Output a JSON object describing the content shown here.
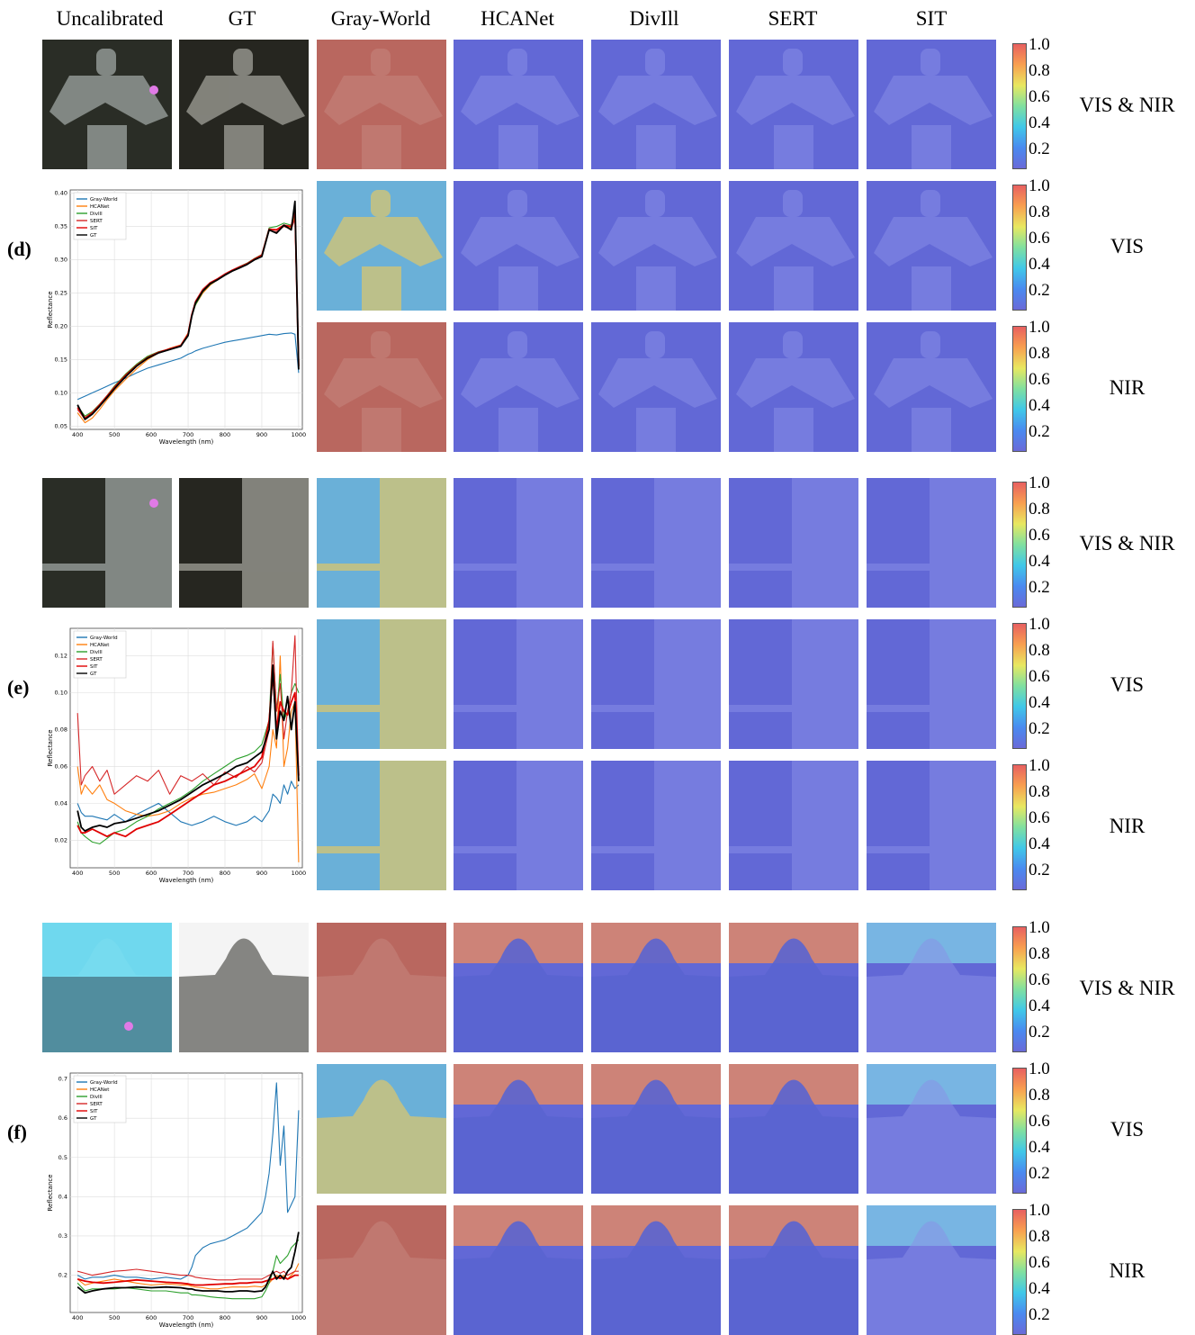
{
  "columns": [
    "Uncalibrated",
    "GT",
    "Gray-World",
    "HCANet",
    "DivIll",
    "SERT",
    "SIT"
  ],
  "groups": [
    {
      "label": "(d)",
      "rows": [
        "VIS & NIR",
        "VIS",
        "NIR"
      ],
      "scene": "lantern",
      "chart_data": {
        "type": "line",
        "xlabel": "Wavelength (nm)",
        "ylabel": "Reflectance",
        "xlim": [
          380,
          1010
        ],
        "ylim": [
          0.045,
          0.405
        ],
        "xticks": [
          400,
          500,
          600,
          700,
          800,
          900,
          1000
        ],
        "yticks": [
          0.05,
          0.1,
          0.15,
          0.2,
          0.25,
          0.3,
          0.35,
          0.4
        ],
        "ytick_labels": [
          "0.05",
          "0.10",
          "0.15",
          "0.20",
          "0.25",
          "0.30",
          "0.35",
          "0.40"
        ],
        "legend": "top-left",
        "x": [
          400,
          420,
          440,
          460,
          480,
          500,
          530,
          560,
          590,
          620,
          650,
          680,
          700,
          710,
          720,
          740,
          760,
          780,
          800,
          820,
          840,
          860,
          880,
          900,
          920,
          940,
          960,
          980,
          990,
          1000
        ],
        "series": [
          {
            "name": "Gray-World",
            "color": "#1f77b4",
            "values": [
              0.09,
              0.095,
              0.1,
              0.105,
              0.11,
              0.115,
              0.122,
              0.13,
              0.137,
              0.142,
              0.147,
              0.152,
              0.158,
              0.16,
              0.163,
              0.167,
              0.17,
              0.173,
              0.176,
              0.178,
              0.18,
              0.182,
              0.184,
              0.186,
              0.188,
              0.187,
              0.189,
              0.19,
              0.188,
              0.13
            ]
          },
          {
            "name": "HCANet",
            "color": "#ff7f0e",
            "values": [
              0.07,
              0.055,
              0.062,
              0.075,
              0.09,
              0.103,
              0.12,
              0.136,
              0.15,
              0.16,
              0.167,
              0.172,
              0.19,
              0.218,
              0.232,
              0.25,
              0.262,
              0.27,
              0.277,
              0.283,
              0.288,
              0.293,
              0.3,
              0.305,
              0.345,
              0.34,
              0.352,
              0.348,
              0.365,
              0.135
            ]
          },
          {
            "name": "DivIll",
            "color": "#2ca02c",
            "values": [
              0.08,
              0.065,
              0.072,
              0.083,
              0.096,
              0.11,
              0.128,
              0.143,
              0.155,
              0.162,
              0.166,
              0.17,
              0.185,
              0.215,
              0.232,
              0.252,
              0.263,
              0.27,
              0.278,
              0.284,
              0.29,
              0.295,
              0.302,
              0.308,
              0.348,
              0.35,
              0.355,
              0.352,
              0.368,
              0.14
            ]
          },
          {
            "name": "SERT",
            "color": "#d62728",
            "values": [
              0.075,
              0.06,
              0.068,
              0.08,
              0.093,
              0.107,
              0.125,
              0.14,
              0.152,
              0.16,
              0.165,
              0.17,
              0.188,
              0.218,
              0.238,
              0.256,
              0.266,
              0.272,
              0.279,
              0.285,
              0.29,
              0.294,
              0.3,
              0.306,
              0.344,
              0.342,
              0.35,
              0.346,
              0.362,
              0.138
            ]
          },
          {
            "name": "SIT",
            "color": "#e00000",
            "values": [
              0.078,
              0.062,
              0.07,
              0.082,
              0.095,
              0.108,
              0.126,
              0.141,
              0.153,
              0.161,
              0.166,
              0.171,
              0.188,
              0.217,
              0.236,
              0.254,
              0.265,
              0.271,
              0.278,
              0.284,
              0.289,
              0.294,
              0.301,
              0.307,
              0.346,
              0.345,
              0.352,
              0.35,
              0.375,
              0.14
            ]
          },
          {
            "name": "GT",
            "color": "#000000",
            "values": [
              0.082,
              0.06,
              0.068,
              0.08,
              0.093,
              0.106,
              0.124,
              0.14,
              0.152,
              0.16,
              0.165,
              0.17,
              0.186,
              0.215,
              0.235,
              0.253,
              0.264,
              0.27,
              0.277,
              0.283,
              0.288,
              0.293,
              0.3,
              0.305,
              0.345,
              0.34,
              0.352,
              0.345,
              0.388,
              0.135
            ]
          }
        ]
      }
    },
    {
      "label": "(e)",
      "rows": [
        "VIS & NIR",
        "VIS",
        "NIR"
      ],
      "scene": "tree",
      "chart_data": {
        "type": "line",
        "xlabel": "Wavelength (nm)",
        "ylabel": "Reflectance",
        "xlim": [
          380,
          1010
        ],
        "ylim": [
          0.005,
          0.135
        ],
        "xticks": [
          400,
          500,
          600,
          700,
          800,
          900,
          1000
        ],
        "yticks": [
          0.02,
          0.04,
          0.06,
          0.08,
          0.1,
          0.12
        ],
        "ytick_labels": [
          "0.02",
          "0.04",
          "0.06",
          "0.08",
          "0.10",
          "0.12"
        ],
        "legend": "top-left",
        "x": [
          400,
          410,
          420,
          440,
          460,
          480,
          500,
          530,
          560,
          590,
          620,
          650,
          680,
          710,
          740,
          770,
          800,
          830,
          860,
          880,
          900,
          920,
          930,
          940,
          950,
          960,
          970,
          980,
          990,
          1000
        ],
        "series": [
          {
            "name": "Gray-World",
            "color": "#1f77b4",
            "values": [
              0.04,
              0.035,
              0.033,
              0.033,
              0.032,
              0.031,
              0.034,
              0.03,
              0.034,
              0.037,
              0.04,
              0.035,
              0.03,
              0.028,
              0.03,
              0.033,
              0.03,
              0.028,
              0.03,
              0.033,
              0.03,
              0.036,
              0.045,
              0.043,
              0.04,
              0.05,
              0.045,
              0.052,
              0.048,
              0.05
            ]
          },
          {
            "name": "HCANet",
            "color": "#ff7f0e",
            "values": [
              0.06,
              0.045,
              0.05,
              0.045,
              0.05,
              0.042,
              0.04,
              0.036,
              0.034,
              0.033,
              0.034,
              0.036,
              0.04,
              0.043,
              0.045,
              0.046,
              0.048,
              0.05,
              0.053,
              0.056,
              0.048,
              0.06,
              0.08,
              0.07,
              0.12,
              0.06,
              0.07,
              0.09,
              0.095,
              0.008
            ]
          },
          {
            "name": "DivIll",
            "color": "#2ca02c",
            "values": [
              0.03,
              0.024,
              0.022,
              0.019,
              0.018,
              0.021,
              0.024,
              0.026,
              0.03,
              0.033,
              0.037,
              0.04,
              0.043,
              0.047,
              0.052,
              0.056,
              0.06,
              0.064,
              0.066,
              0.068,
              0.072,
              0.085,
              0.127,
              0.09,
              0.11,
              0.085,
              0.09,
              0.1,
              0.105,
              0.1
            ]
          },
          {
            "name": "SERT",
            "color": "#d62728",
            "values": [
              0.089,
              0.05,
              0.055,
              0.06,
              0.052,
              0.058,
              0.045,
              0.05,
              0.055,
              0.052,
              0.058,
              0.045,
              0.055,
              0.052,
              0.056,
              0.05,
              0.057,
              0.054,
              0.06,
              0.057,
              0.062,
              0.08,
              0.128,
              0.09,
              0.105,
              0.075,
              0.09,
              0.1,
              0.131,
              0.052
            ]
          },
          {
            "name": "SIT",
            "color": "#e00000",
            "values": [
              0.028,
              0.024,
              0.024,
              0.026,
              0.024,
              0.022,
              0.024,
              0.022,
              0.026,
              0.028,
              0.03,
              0.034,
              0.038,
              0.042,
              0.046,
              0.05,
              0.052,
              0.055,
              0.058,
              0.06,
              0.065,
              0.085,
              0.11,
              0.08,
              0.095,
              0.09,
              0.088,
              0.095,
              0.1,
              0.055
            ]
          },
          {
            "name": "GT",
            "color": "#000000",
            "values": [
              0.036,
              0.027,
              0.025,
              0.027,
              0.028,
              0.027,
              0.029,
              0.03,
              0.032,
              0.034,
              0.036,
              0.039,
              0.042,
              0.046,
              0.05,
              0.053,
              0.056,
              0.06,
              0.062,
              0.065,
              0.068,
              0.08,
              0.115,
              0.075,
              0.09,
              0.085,
              0.098,
              0.08,
              0.095,
              0.052
            ]
          }
        ]
      }
    },
    {
      "label": "(f)",
      "rows": [
        "VIS & NIR",
        "VIS",
        "NIR"
      ],
      "scene": "dome",
      "chart_data": {
        "type": "line",
        "xlabel": "Wavelength (nm)",
        "ylabel": "Reflectance",
        "xlim": [
          380,
          1010
        ],
        "ylim": [
          0.105,
          0.715
        ],
        "xticks": [
          400,
          500,
          600,
          700,
          800,
          900,
          1000
        ],
        "yticks": [
          0.2,
          0.3,
          0.4,
          0.5,
          0.6,
          0.7
        ],
        "ytick_labels": [
          "0.2",
          "0.3",
          "0.4",
          "0.5",
          "0.6",
          "0.7"
        ],
        "legend": "top-left",
        "x": [
          400,
          420,
          440,
          470,
          500,
          530,
          560,
          600,
          640,
          680,
          700,
          710,
          720,
          740,
          760,
          780,
          800,
          820,
          840,
          860,
          880,
          900,
          910,
          920,
          930,
          940,
          950,
          960,
          970,
          980,
          990,
          1000
        ],
        "series": [
          {
            "name": "Gray-World",
            "color": "#1f77b4",
            "values": [
              0.2,
              0.19,
              0.195,
              0.195,
              0.2,
              0.195,
              0.195,
              0.19,
              0.195,
              0.19,
              0.2,
              0.22,
              0.25,
              0.27,
              0.28,
              0.285,
              0.29,
              0.3,
              0.31,
              0.32,
              0.34,
              0.36,
              0.4,
              0.46,
              0.56,
              0.69,
              0.48,
              0.58,
              0.36,
              0.38,
              0.4,
              0.62
            ]
          },
          {
            "name": "HCANet",
            "color": "#ff7f0e",
            "values": [
              0.19,
              0.175,
              0.18,
              0.185,
              0.19,
              0.185,
              0.18,
              0.175,
              0.178,
              0.175,
              0.175,
              0.172,
              0.17,
              0.168,
              0.165,
              0.165,
              0.168,
              0.17,
              0.17,
              0.17,
              0.172,
              0.17,
              0.175,
              0.18,
              0.19,
              0.2,
              0.195,
              0.2,
              0.19,
              0.2,
              0.21,
              0.23
            ]
          },
          {
            "name": "DivIll",
            "color": "#2ca02c",
            "values": [
              0.18,
              0.16,
              0.165,
              0.165,
              0.165,
              0.168,
              0.165,
              0.16,
              0.16,
              0.155,
              0.155,
              0.15,
              0.15,
              0.148,
              0.145,
              0.143,
              0.142,
              0.14,
              0.14,
              0.14,
              0.14,
              0.145,
              0.16,
              0.18,
              0.21,
              0.25,
              0.23,
              0.24,
              0.25,
              0.27,
              0.28,
              0.29
            ]
          },
          {
            "name": "SERT",
            "color": "#d62728",
            "values": [
              0.21,
              0.205,
              0.2,
              0.205,
              0.21,
              0.212,
              0.215,
              0.21,
              0.205,
              0.2,
              0.2,
              0.198,
              0.195,
              0.192,
              0.19,
              0.188,
              0.188,
              0.188,
              0.19,
              0.19,
              0.19,
              0.19,
              0.195,
              0.2,
              0.205,
              0.21,
              0.205,
              0.21,
              0.2,
              0.205,
              0.21,
              0.21
            ]
          },
          {
            "name": "SIT",
            "color": "#e00000",
            "values": [
              0.19,
              0.185,
              0.182,
              0.18,
              0.182,
              0.185,
              0.188,
              0.185,
              0.182,
              0.18,
              0.178,
              0.176,
              0.175,
              0.175,
              0.176,
              0.177,
              0.178,
              0.178,
              0.18,
              0.18,
              0.182,
              0.182,
              0.185,
              0.188,
              0.19,
              0.195,
              0.192,
              0.195,
              0.19,
              0.195,
              0.2,
              0.2
            ]
          },
          {
            "name": "GT",
            "color": "#000000",
            "values": [
              0.17,
              0.155,
              0.16,
              0.165,
              0.168,
              0.168,
              0.17,
              0.168,
              0.17,
              0.168,
              0.165,
              0.165,
              0.162,
              0.16,
              0.16,
              0.16,
              0.158,
              0.158,
              0.16,
              0.16,
              0.158,
              0.16,
              0.17,
              0.19,
              0.21,
              0.19,
              0.2,
              0.19,
              0.21,
              0.22,
              0.26,
              0.31
            ]
          }
        ]
      }
    }
  ],
  "colorbar": {
    "ticks": [
      "1.0",
      "0.8",
      "0.6",
      "0.4",
      "0.2"
    ],
    "colors": [
      "#6a6ad8",
      "#4a8af0",
      "#40c8e8",
      "#80e0a0",
      "#e8e860",
      "#f8a050",
      "#e86060"
    ]
  },
  "marker_color": "#e07ae6",
  "palette": {
    "low": "#6268d6",
    "high": "#e07070",
    "grayworld_bg": "#b9675f"
  }
}
